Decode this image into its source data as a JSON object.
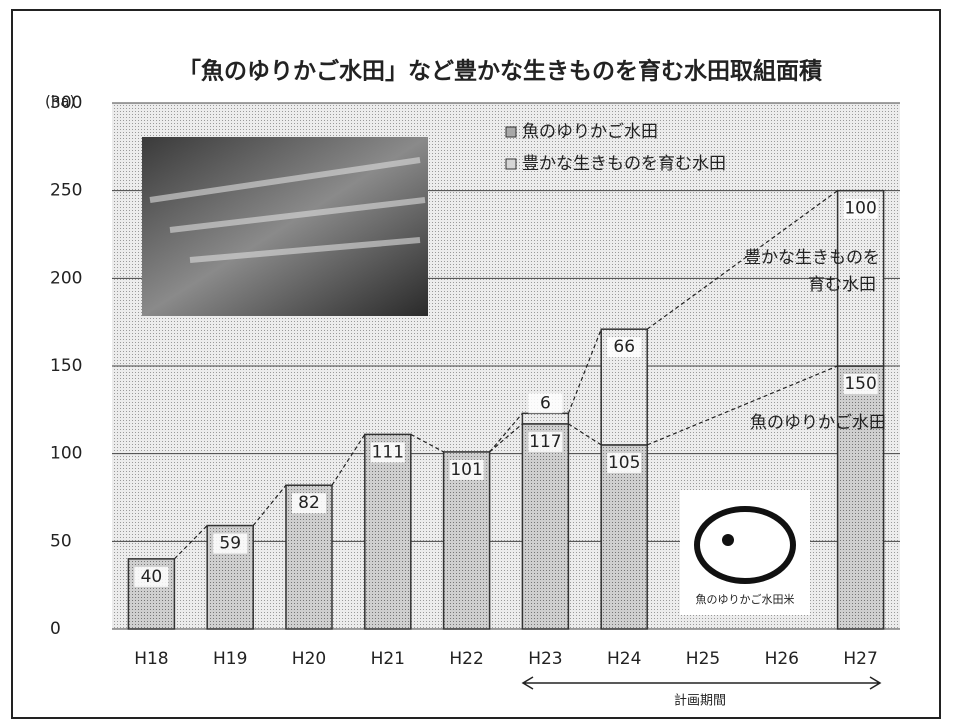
{
  "chart_data": {
    "type": "bar",
    "stacked": true,
    "title": "「魚のゆりかご水田」など豊かな生きものを育む水田取組面積",
    "y_unit": "(ha)",
    "categories": [
      "H18",
      "H19",
      "H20",
      "H21",
      "H22",
      "H23",
      "H24",
      "H25",
      "H26",
      "H27"
    ],
    "series": [
      {
        "name": "魚のゆりかご水田",
        "color": "#a8a8a8",
        "values": [
          40,
          59,
          82,
          111,
          101,
          117,
          105,
          null,
          null,
          150
        ]
      },
      {
        "name": "豊かな生きものを育む水田",
        "color": "#d6d6d6",
        "values": [
          null,
          null,
          null,
          null,
          null,
          6,
          66,
          null,
          null,
          100
        ]
      }
    ],
    "ylim": [
      0,
      300
    ],
    "yticks": [
      0,
      50,
      100,
      150,
      200,
      250,
      300
    ],
    "grid": true,
    "legend": "upper right",
    "annotations": {
      "series_labels": [
        [
          "豊かな生きものを",
          "育む水田"
        ],
        "魚のゆりかご水田"
      ],
      "plan_period": "計画期間",
      "logo_text": "魚のゆりかご水田米"
    }
  }
}
